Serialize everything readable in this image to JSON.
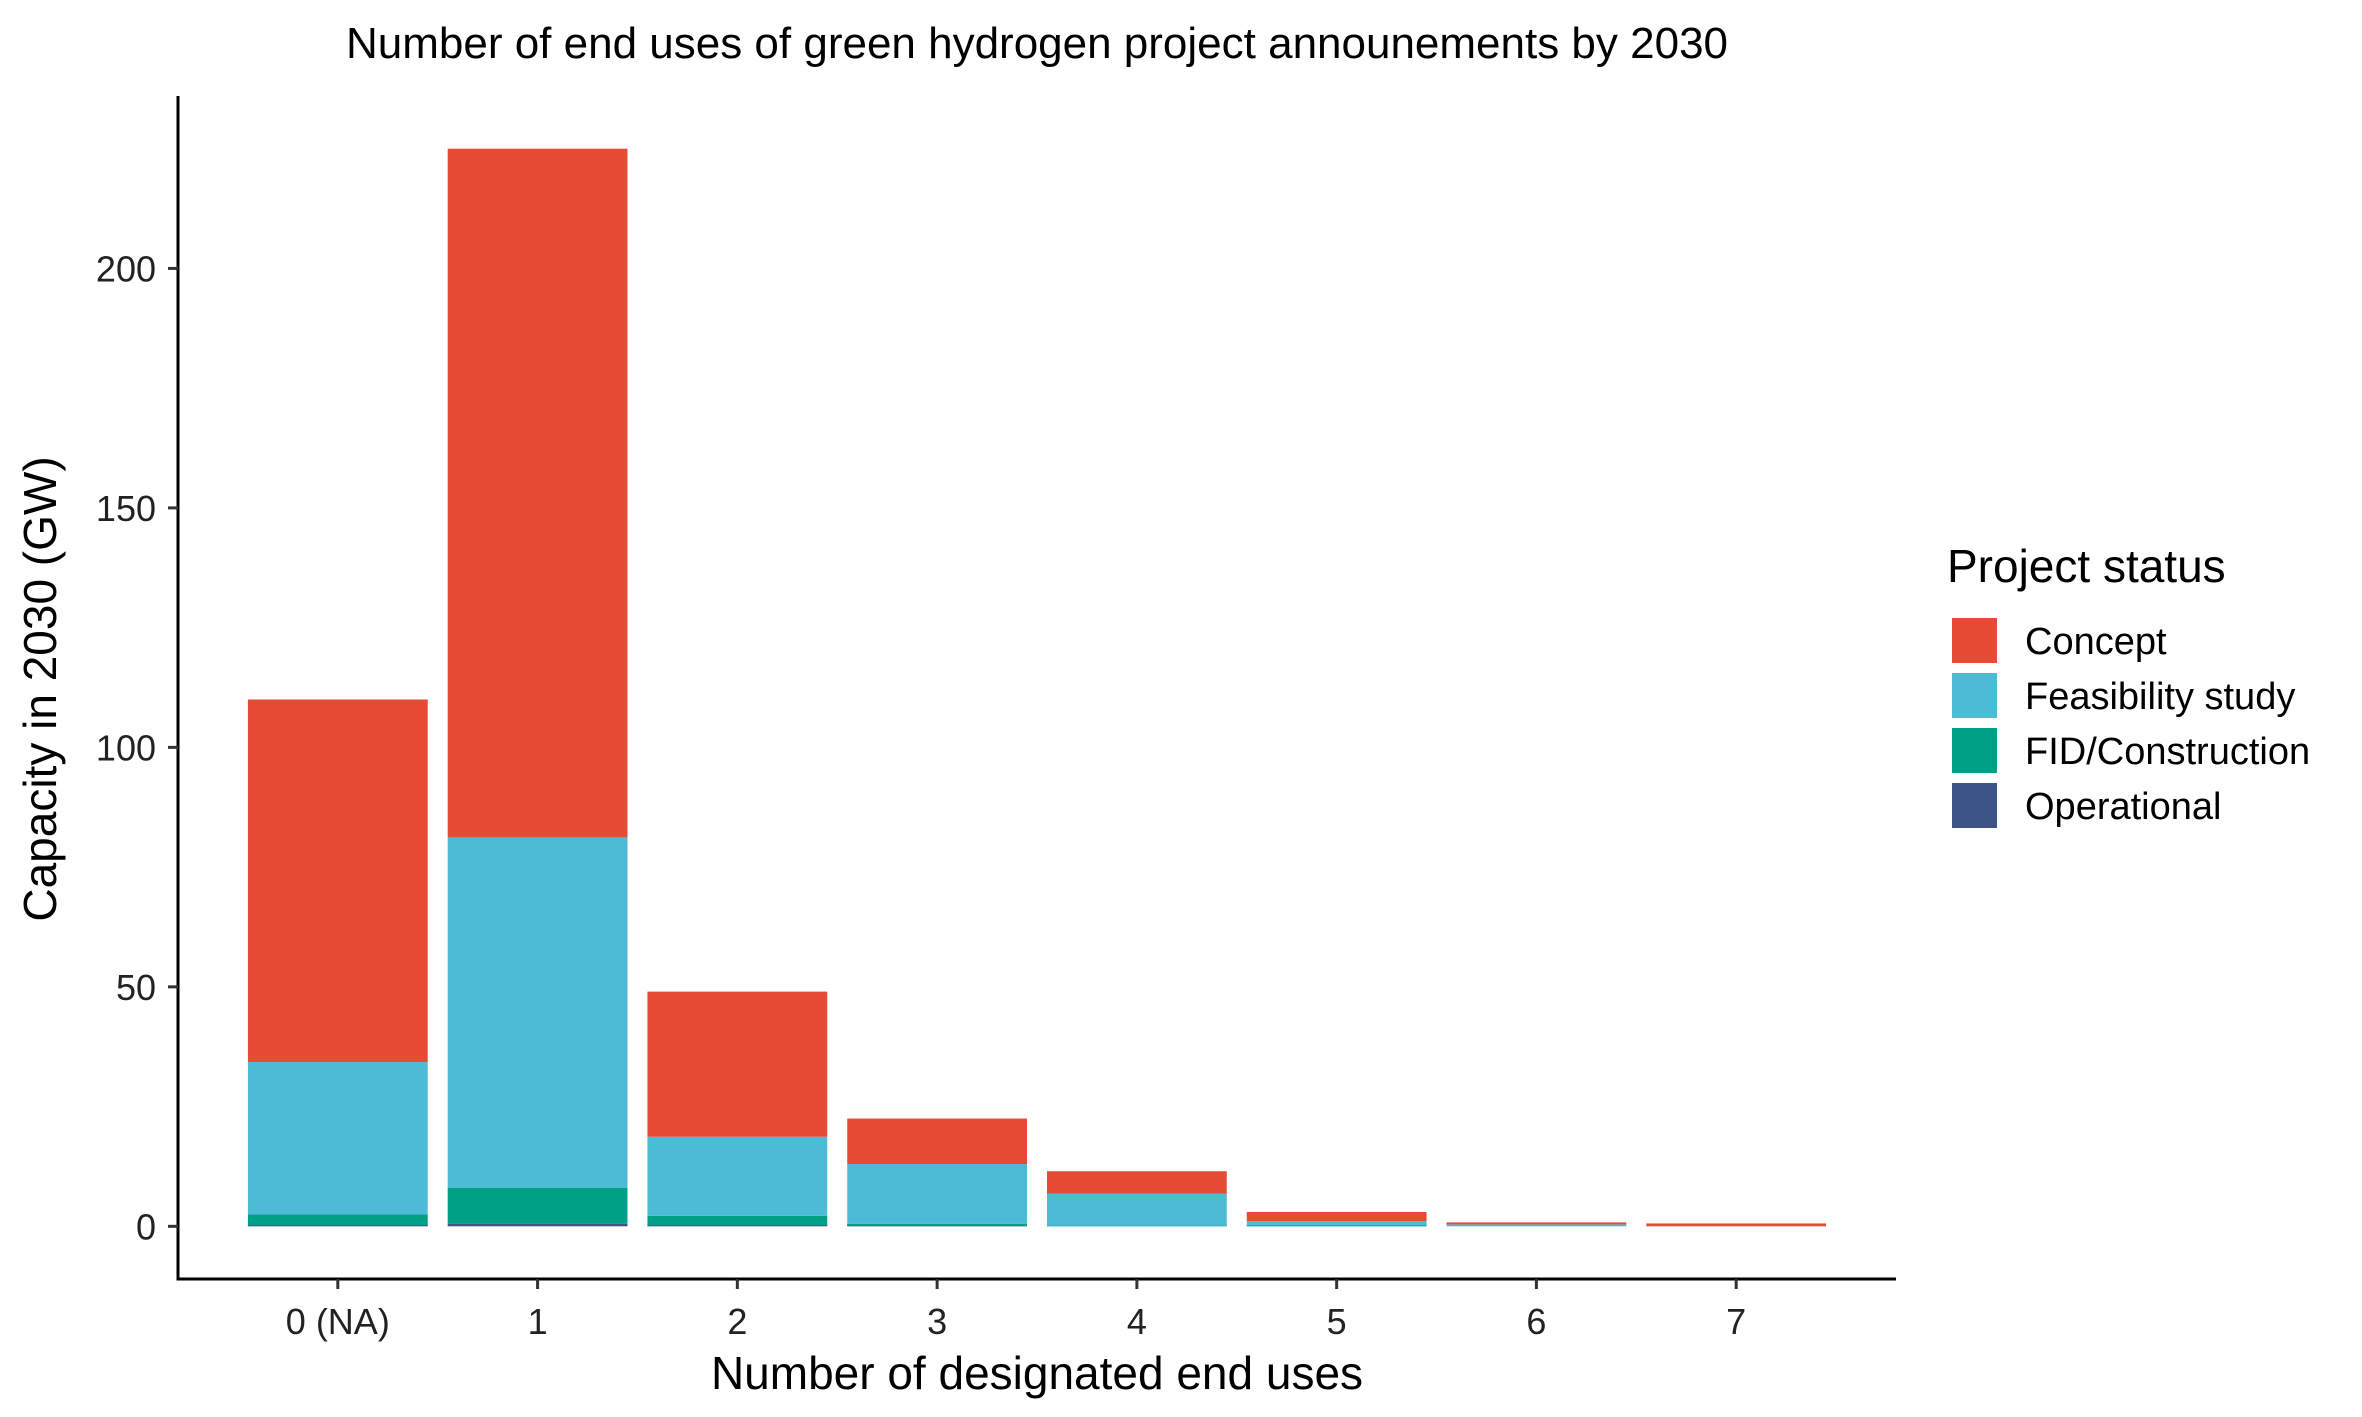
{
  "chart_data": {
    "type": "bar",
    "stacked": true,
    "title": "Number of end uses of green hydrogen project announements by 2030",
    "xlabel": "Number of designated end uses",
    "ylabel": "Capacity in 2030 (GW)",
    "categories": [
      "0 (NA)",
      "1",
      "2",
      "3",
      "4",
      "5",
      "6",
      "7"
    ],
    "ylim": [
      -11,
      236
    ],
    "yticks": [
      0,
      50,
      100,
      150,
      200
    ],
    "grid": false,
    "legend": {
      "title": "Project status",
      "placement": "right"
    },
    "series": [
      {
        "name": "Operational",
        "color": "#3C5488",
        "values": [
          0.2,
          0.5,
          0.2,
          0.1,
          0.0,
          0.0,
          0.0,
          0.0
        ]
      },
      {
        "name": "FID/Construction",
        "color": "#00A087",
        "values": [
          2.3,
          7.5,
          2.0,
          0.4,
          0.1,
          0.2,
          0.0,
          0.0
        ]
      },
      {
        "name": "Feasibility study",
        "color": "#4DBBD5",
        "values": [
          31.8,
          73.2,
          16.5,
          12.5,
          6.7,
          0.9,
          0.4,
          0.0
        ]
      },
      {
        "name": "Concept",
        "color": "#E64B35",
        "values": [
          75.7,
          143.8,
          30.3,
          9.5,
          4.7,
          1.9,
          0.1,
          0.6
        ]
      }
    ]
  }
}
